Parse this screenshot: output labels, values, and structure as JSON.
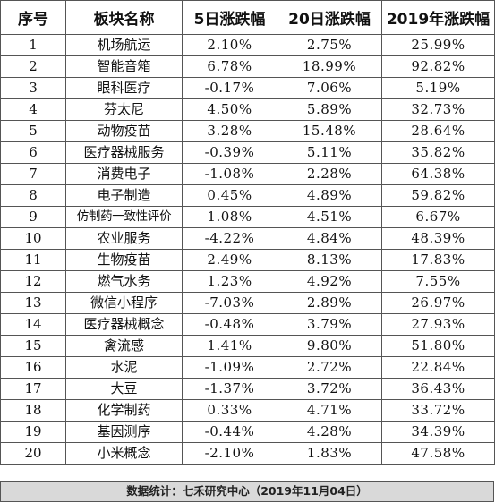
{
  "table": {
    "headers": [
      "序号",
      "板块名称",
      "5日涨跌幅",
      "20日涨跌幅",
      "2019年涨跌幅"
    ],
    "rows": [
      [
        "1",
        "机场航运",
        "2.10%",
        "2.75%",
        "25.99%"
      ],
      [
        "2",
        "智能音箱",
        "6.78%",
        "18.99%",
        "92.82%"
      ],
      [
        "3",
        "眼科医疗",
        "-0.17%",
        "7.06%",
        "5.19%"
      ],
      [
        "4",
        "芬太尼",
        "4.50%",
        "5.89%",
        "32.73%"
      ],
      [
        "5",
        "动物疫苗",
        "3.28%",
        "15.48%",
        "28.64%"
      ],
      [
        "6",
        "医疗器械服务",
        "-0.39%",
        "5.11%",
        "35.82%"
      ],
      [
        "7",
        "消费电子",
        "-1.08%",
        "2.28%",
        "64.38%"
      ],
      [
        "8",
        "电子制造",
        "0.45%",
        "4.89%",
        "59.82%"
      ],
      [
        "9",
        "仿制药一致性评价",
        "1.08%",
        "4.51%",
        "6.67%"
      ],
      [
        "10",
        "农业服务",
        "-4.22%",
        "4.84%",
        "48.39%"
      ],
      [
        "11",
        "生物疫苗",
        "2.49%",
        "8.13%",
        "17.83%"
      ],
      [
        "12",
        "燃气水务",
        "1.23%",
        "4.92%",
        "7.55%"
      ],
      [
        "13",
        "微信小程序",
        "-7.03%",
        "2.89%",
        "26.97%"
      ],
      [
        "14",
        "医疗器械概念",
        "-0.48%",
        "3.79%",
        "27.93%"
      ],
      [
        "15",
        "禽流感",
        "1.41%",
        "9.80%",
        "51.80%"
      ],
      [
        "16",
        "水泥",
        "-1.09%",
        "2.72%",
        "22.84%"
      ],
      [
        "17",
        "大豆",
        "-1.37%",
        "3.72%",
        "36.43%"
      ],
      [
        "18",
        "化学制药",
        "0.33%",
        "4.71%",
        "33.72%"
      ],
      [
        "19",
        "基因测序",
        "-0.44%",
        "4.28%",
        "34.39%"
      ],
      [
        "20",
        "小米概念",
        "-2.10%",
        "1.83%",
        "47.58%"
      ]
    ]
  },
  "footer": {
    "source": "数据统计：七禾研究中心（2019年11月04日）"
  }
}
